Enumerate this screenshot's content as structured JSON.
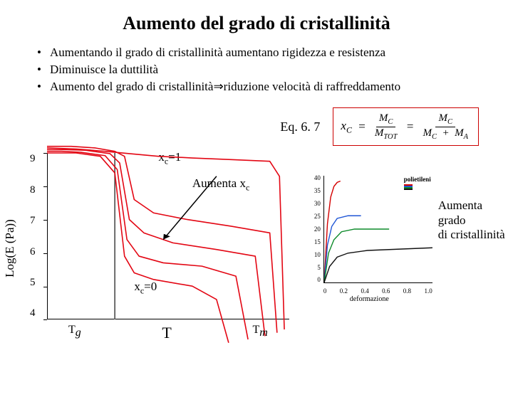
{
  "title": "Aumento del grado di cristallinità",
  "bullets": [
    "Aumentando il grado di cristallinità aumentano rigidezza e resistenza",
    "Diminuisce la duttilità",
    "Aumento del grado di cristallinità⇒riduzione velocità di raffreddamento"
  ],
  "equation": {
    "label": "Eq. 6. 7",
    "lhs_var": "x",
    "lhs_sub": "C",
    "frac1_num": "M",
    "frac1_num_sub": "C",
    "frac1_den": "M",
    "frac1_den_sub": "TOT",
    "frac2_num": "M",
    "frac2_num_sub": "C",
    "frac2_den_l": "M",
    "frac2_den_l_sub": "C",
    "frac2_den_r": "M",
    "frac2_den_r_sub": "A"
  },
  "left_chart": {
    "ylabel": "Log(E (Pa))",
    "ylim": [
      4,
      9
    ],
    "yticks": [
      "9",
      "8",
      "7",
      "6",
      "5",
      "4"
    ],
    "xlabels": {
      "left": "T",
      "left_sub": "g",
      "center": "T",
      "right": "T",
      "right_sub": "m"
    },
    "annot_top": "x",
    "annot_top_sub": "c",
    "annot_top_eq": "=1",
    "annot_mid": "Aumenta x",
    "annot_mid_sub": "c",
    "annot_bot": "x",
    "annot_bot_sub": "c",
    "annot_bot_eq": "=0",
    "curve_color": "#e30613",
    "tg_line_color": "#555555",
    "axis_color": "#000000",
    "curves": [
      {
        "points": [
          [
            0,
            9.0
          ],
          [
            5,
            9.0
          ],
          [
            12,
            9.0
          ],
          [
            22,
            8.9
          ],
          [
            28,
            8.4
          ],
          [
            32,
            5.9
          ],
          [
            36,
            5.4
          ],
          [
            44,
            5.2
          ],
          [
            60,
            5.0
          ],
          [
            70,
            4.6
          ],
          [
            75,
            3.3
          ]
        ]
      },
      {
        "points": [
          [
            0,
            9.05
          ],
          [
            6,
            9.05
          ],
          [
            14,
            9.02
          ],
          [
            24,
            8.92
          ],
          [
            29,
            8.5
          ],
          [
            33,
            6.4
          ],
          [
            38,
            5.9
          ],
          [
            48,
            5.7
          ],
          [
            64,
            5.6
          ],
          [
            78,
            5.3
          ],
          [
            83,
            3.4
          ]
        ]
      },
      {
        "points": [
          [
            0,
            9.1
          ],
          [
            8,
            9.1
          ],
          [
            16,
            9.08
          ],
          [
            26,
            8.98
          ],
          [
            30,
            8.7
          ],
          [
            34,
            7.0
          ],
          [
            40,
            6.6
          ],
          [
            52,
            6.3
          ],
          [
            70,
            6.1
          ],
          [
            86,
            5.9
          ],
          [
            90,
            3.5
          ]
        ]
      },
      {
        "points": [
          [
            0,
            9.2
          ],
          [
            10,
            9.2
          ],
          [
            20,
            9.15
          ],
          [
            28,
            9.05
          ],
          [
            32,
            8.9
          ],
          [
            36,
            7.6
          ],
          [
            44,
            7.2
          ],
          [
            58,
            7.0
          ],
          [
            76,
            6.8
          ],
          [
            92,
            6.6
          ],
          [
            95,
            3.6
          ]
        ]
      },
      {
        "points": [
          [
            0,
            9.15
          ],
          [
            12,
            9.12
          ],
          [
            24,
            9.05
          ],
          [
            34,
            8.98
          ],
          [
            46,
            8.9
          ],
          [
            60,
            8.85
          ],
          [
            76,
            8.8
          ],
          [
            92,
            8.75
          ],
          [
            96,
            8.3
          ],
          [
            98,
            3.7
          ]
        ]
      }
    ],
    "tg_x": 28,
    "arrow": {
      "from": [
        70,
        8.3
      ],
      "to": [
        48,
        6.4
      ]
    }
  },
  "right_chart": {
    "legend_title": "polietileni",
    "legend": [
      {
        "color": "#d40000",
        "label": "—"
      },
      {
        "color": "#1f56d6",
        "label": "—"
      },
      {
        "color": "#0d8a2a",
        "label": "—"
      },
      {
        "color": "#111111",
        "label": "—"
      }
    ],
    "ylim": [
      0,
      40
    ],
    "yticks": [
      "40",
      "35",
      "30",
      "25",
      "20",
      "15",
      "10",
      "5",
      "0"
    ],
    "xlim": [
      0,
      1.0
    ],
    "xticks": [
      "0",
      "0.2",
      "0.4",
      "0.6",
      "0.8",
      "1.0"
    ],
    "xlabel": "deformazione",
    "axis_color": "#000000",
    "curves": [
      {
        "color": "#d40000",
        "points": [
          [
            0,
            0
          ],
          [
            0.03,
            22
          ],
          [
            0.06,
            32
          ],
          [
            0.09,
            36
          ],
          [
            0.12,
            37.5
          ],
          [
            0.15,
            38
          ]
        ]
      },
      {
        "color": "#1f56d6",
        "points": [
          [
            0,
            0
          ],
          [
            0.03,
            14
          ],
          [
            0.07,
            21
          ],
          [
            0.12,
            24
          ],
          [
            0.22,
            25
          ],
          [
            0.34,
            25
          ]
        ]
      },
      {
        "color": "#0d8a2a",
        "points": [
          [
            0,
            0
          ],
          [
            0.04,
            11
          ],
          [
            0.09,
            16
          ],
          [
            0.16,
            19
          ],
          [
            0.28,
            20
          ],
          [
            0.45,
            20
          ],
          [
            0.6,
            20
          ]
        ]
      },
      {
        "color": "#111111",
        "points": [
          [
            0,
            0
          ],
          [
            0.05,
            6
          ],
          [
            0.12,
            9.5
          ],
          [
            0.22,
            11
          ],
          [
            0.4,
            12
          ],
          [
            0.7,
            12.5
          ],
          [
            1.0,
            13
          ]
        ]
      }
    ]
  },
  "right_annotation": {
    "l1": "Aumenta grado",
    "l2": "di cristallinità"
  },
  "colors": {
    "eq_border": "#cc0000",
    "text": "#000000",
    "bg": "#ffffff"
  }
}
